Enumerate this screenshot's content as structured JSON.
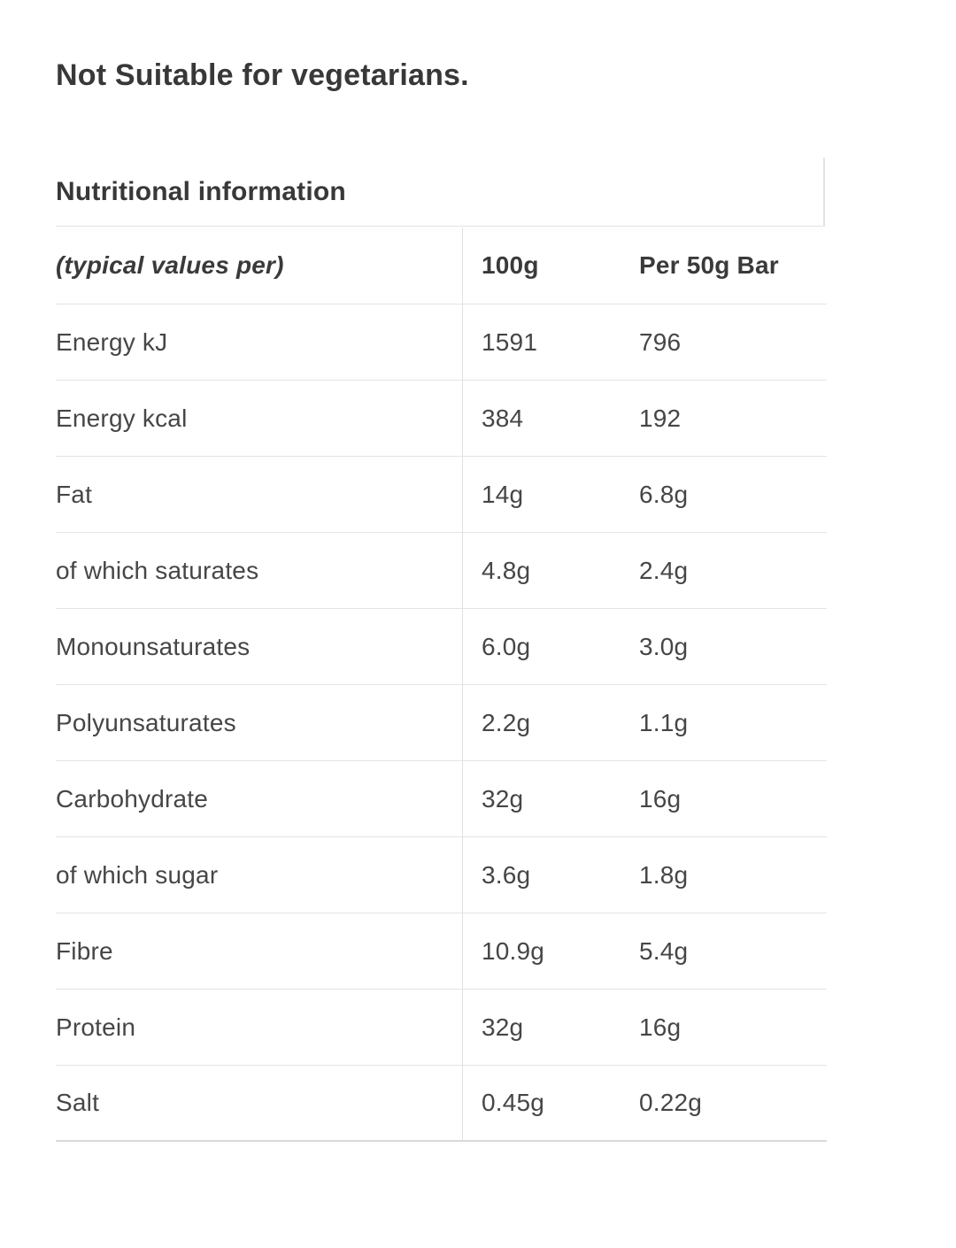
{
  "dietary": {
    "note": "Not Suitable for vegetarians."
  },
  "section": {
    "title": "Nutritional information"
  },
  "table": {
    "header": {
      "col1": "(typical values per)",
      "col2": "100g",
      "col3": "Per 50g Bar"
    },
    "rows": [
      [
        "Energy kJ",
        "1591",
        "796"
      ],
      [
        "Energy kcal",
        "384",
        "192"
      ],
      [
        "Fat",
        "14g",
        "6.8g"
      ],
      [
        "of which saturates",
        "4.8g",
        "2.4g"
      ],
      [
        "Monounsaturates",
        "6.0g",
        "3.0g"
      ],
      [
        "Polyunsaturates",
        "2.2g",
        "1.1g"
      ],
      [
        "Carbohydrate",
        "32g",
        "16g"
      ],
      [
        "of which sugar",
        "3.6g",
        "1.8g"
      ],
      [
        "Fibre",
        "10.9g",
        "5.4g"
      ],
      [
        "Protein",
        "32g",
        "16g"
      ],
      [
        "Salt",
        "0.45g",
        "0.22g"
      ]
    ]
  },
  "colors": {
    "text_heading": "#383838",
    "text_body": "#464646",
    "divider": "#e4e4e4",
    "divider_strong": "#d9d9d9"
  }
}
